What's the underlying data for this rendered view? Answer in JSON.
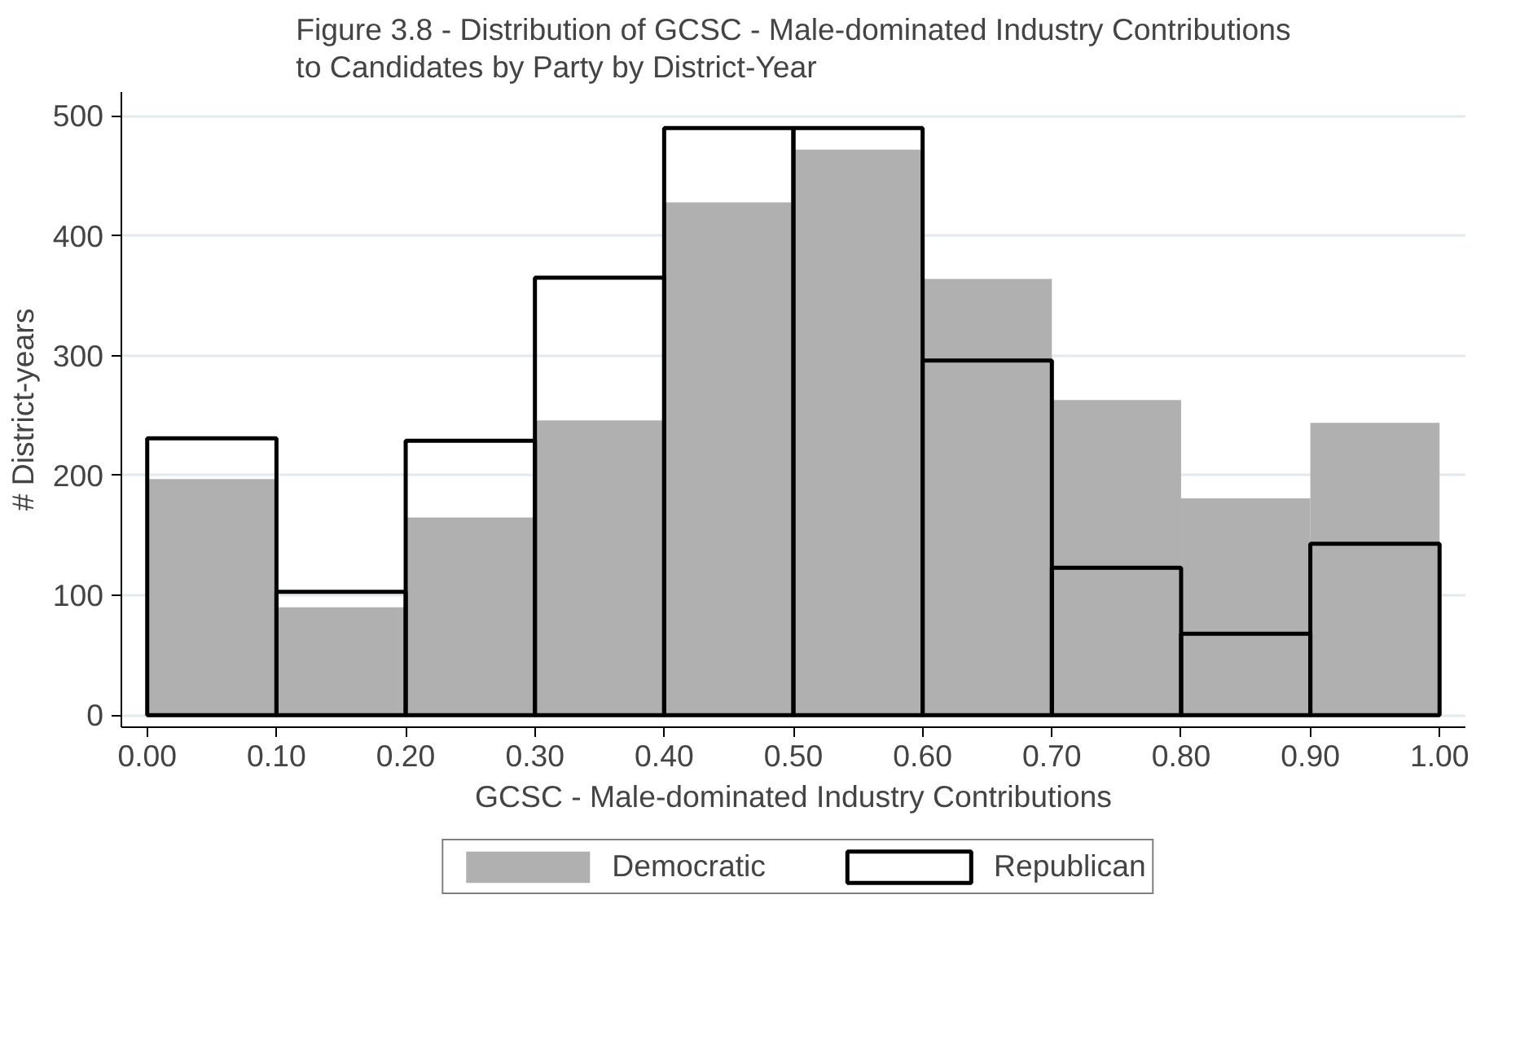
{
  "chart_data": {
    "type": "histogram",
    "title": "Figure 3.8 - Distribution of GCSC - Male-dominated Industry Contributions\nto Candidates by Party by District-Year",
    "xlabel": "GCSC - Male-dominated Industry Contributions",
    "ylabel": "# District-years",
    "bins": [
      0,
      0.1,
      0.2,
      0.3,
      0.4,
      0.5,
      0.6,
      0.7,
      0.8,
      0.9,
      1.0
    ],
    "series": [
      {
        "name": "Democratic",
        "color": "#b0b0b0",
        "values": [
          197,
          90,
          165,
          246,
          428,
          472,
          364,
          263,
          181,
          244
        ]
      },
      {
        "name": "Republican",
        "color": "#000000",
        "values": [
          231,
          103,
          229,
          365,
          490,
          490,
          296,
          123,
          68,
          143
        ]
      }
    ],
    "xlim": [
      -0.02,
      1.02
    ],
    "ylim": [
      -10,
      520
    ],
    "xticks": [
      {
        "value": 0,
        "label": "0.00"
      },
      {
        "value": 0.1,
        "label": "0.10"
      },
      {
        "value": 0.2,
        "label": "0.20"
      },
      {
        "value": 0.3,
        "label": "0.30"
      },
      {
        "value": 0.4,
        "label": "0.40"
      },
      {
        "value": 0.5,
        "label": "0.50"
      },
      {
        "value": 0.6,
        "label": "0.60"
      },
      {
        "value": 0.7,
        "label": "0.70"
      },
      {
        "value": 0.8,
        "label": "0.80"
      },
      {
        "value": 0.9,
        "label": "0.90"
      },
      {
        "value": 1.0,
        "label": "1.00"
      }
    ],
    "yticks": [
      0,
      100,
      200,
      300,
      400,
      500
    ],
    "grid": "y",
    "legend": "bottom"
  }
}
